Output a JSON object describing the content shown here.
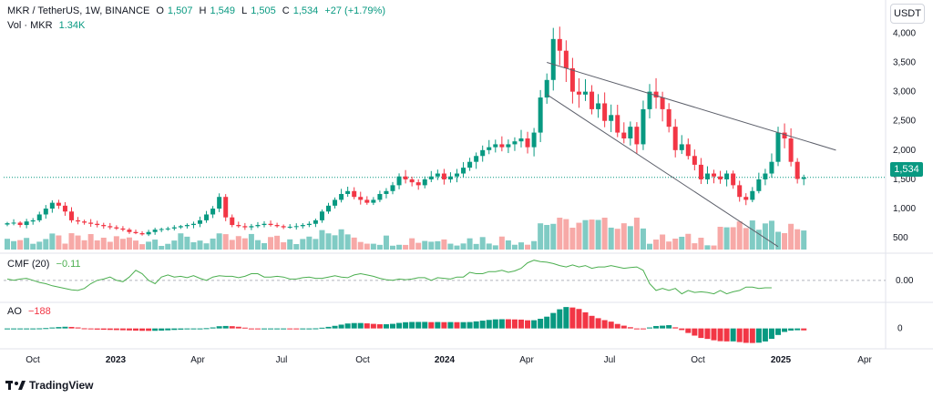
{
  "header": {
    "symbol": "MKR / TetherUS, 1W, BINANCE",
    "open_label": "O",
    "open": "1,507",
    "high_label": "H",
    "high": "1,549",
    "low_label": "L",
    "low": "1,505",
    "close_label": "C",
    "close": "1,534",
    "change": "+27 (+1.79%)"
  },
  "volume_legend": {
    "label": "Vol · MKR",
    "value": "1.34K"
  },
  "cmf_legend": {
    "label": "CMF (20)",
    "value": "−0.11"
  },
  "ao_legend": {
    "label": "AO",
    "value": "−188"
  },
  "currency_button": "USDT",
  "last_price_tag": "1,534",
  "brand": "TradingView",
  "colors": {
    "up": "#089981",
    "down": "#f23645",
    "vol_up": "#80cbc4",
    "vol_down": "#f7a9a7",
    "cmf": "#4caf50",
    "trendline": "#5d606b"
  },
  "chart_data": [
    {
      "type": "candlestick",
      "title": "MKR / TetherUS, 1W, BINANCE",
      "price_axis_ticks": [
        "4,000",
        "3,500",
        "3,000",
        "2,500",
        "2,000",
        "1,500",
        "1,000",
        "500"
      ],
      "ylim": [
        300,
        4100
      ],
      "time_axis_ticks": [
        "Oct",
        "2023",
        "Apr",
        "Jul",
        "Oct",
        "2024",
        "Apr",
        "Jul",
        "Oct",
        "2025",
        "Apr"
      ],
      "last_price": 1534,
      "weekly_close": [
        750,
        760,
        720,
        780,
        800,
        900,
        1000,
        1100,
        1050,
        950,
        800,
        780,
        760,
        740,
        720,
        700,
        680,
        660,
        640,
        600,
        580,
        560,
        600,
        640,
        650,
        660,
        680,
        700,
        720,
        740,
        800,
        900,
        1000,
        1200,
        850,
        720,
        700,
        680,
        700,
        720,
        740,
        720,
        700,
        680,
        690,
        700,
        720,
        740,
        800,
        950,
        1050,
        1150,
        1250,
        1300,
        1200,
        1150,
        1100,
        1150,
        1250,
        1300,
        1400,
        1550,
        1500,
        1450,
        1400,
        1500,
        1550,
        1600,
        1500,
        1550,
        1600,
        1700,
        1800,
        1900,
        2000,
        2050,
        2100,
        2050,
        2100,
        2150,
        2200,
        2050,
        2300,
        2900,
        3200,
        3900,
        3700,
        3400,
        3000,
        2950,
        3000,
        2700,
        2800,
        2500,
        2600,
        2300,
        2200,
        2400,
        2100,
        2700,
        3000,
        2900,
        2700,
        2400,
        2000,
        2100,
        1900,
        1750,
        1500,
        1600,
        1550,
        1500,
        1600,
        1400,
        1200,
        1150,
        1300,
        1500,
        1600,
        1800,
        2300,
        2200,
        1800,
        1507,
        1534
      ],
      "trendlines": [
        {
          "from": {
            "x": "2024-03",
            "y": 3500
          },
          "to": {
            "x": "2025-03",
            "y": 2000
          }
        },
        {
          "from": {
            "x": "2024-03",
            "y": 2950
          },
          "to": {
            "x": "2024-12",
            "y": 350
          }
        }
      ]
    },
    {
      "type": "bar",
      "title": "Vol · MKR",
      "last_value": "1.34K"
    },
    {
      "type": "line",
      "title": "CMF (20)",
      "axis_ticks": [
        "0.00"
      ],
      "ylim": [
        -0.3,
        0.35
      ],
      "last_value": -0.11,
      "values": [
        0.02,
        0.0,
        0.02,
        0.03,
        0.0,
        -0.03,
        -0.05,
        -0.08,
        -0.1,
        -0.12,
        -0.14,
        -0.15,
        -0.12,
        -0.05,
        0.0,
        0.02,
        0.05,
        0.0,
        -0.02,
        0.05,
        0.15,
        0.1,
        0.0,
        -0.05,
        0.05,
        0.08,
        0.05,
        0.06,
        0.04,
        0.07,
        0.03,
        0.0,
        0.05,
        0.07,
        0.06,
        0.06,
        0.04,
        0.06,
        0.1,
        0.1,
        0.05,
        0.05,
        0.06,
        0.05,
        0.02,
        0.02,
        0.04,
        0.05,
        0.03,
        0.03,
        0.05,
        0.07,
        0.05,
        0.04,
        0.08,
        0.1,
        0.08,
        0.06,
        0.03,
        0.01,
        0.0,
        0.02,
        0.01,
        0.02,
        0.04,
        0.04,
        0.0,
        0.04,
        0.03,
        0.02,
        0.05,
        0.05,
        0.12,
        0.1,
        0.1,
        0.13,
        0.13,
        0.15,
        0.12,
        0.14,
        0.18,
        0.26,
        0.3,
        0.28,
        0.27,
        0.25,
        0.22,
        0.2,
        0.23,
        0.2,
        0.22,
        0.18,
        0.2,
        0.2,
        0.22,
        0.2,
        0.18,
        0.19,
        0.2,
        0.15,
        -0.05,
        -0.15,
        -0.12,
        -0.15,
        -0.12,
        -0.2,
        -0.15,
        -0.18,
        -0.17,
        -0.18,
        -0.2,
        -0.15,
        -0.2,
        -0.17,
        -0.15,
        -0.1,
        -0.1,
        -0.12,
        -0.11,
        -0.11
      ]
    },
    {
      "type": "bar",
      "title": "AO",
      "axis_ticks": [
        "0"
      ],
      "ylim": [
        -1300,
        1700
      ],
      "last_value": -188
    }
  ]
}
